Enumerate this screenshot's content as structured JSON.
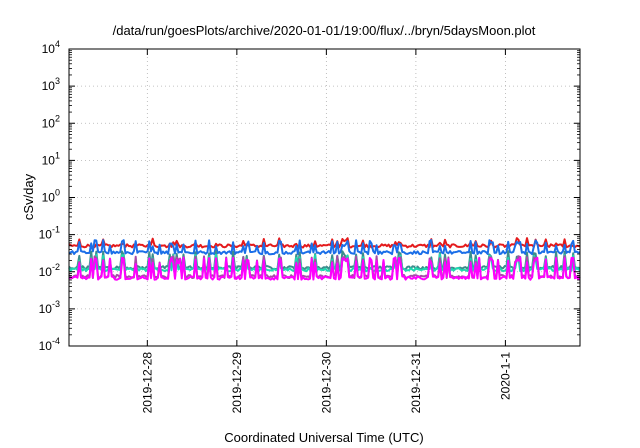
{
  "chart_data": {
    "type": "line",
    "title": "/data/run/goesPlots/archive/2020-01-01/19:00/flux/../bryn/5daysMoon.plot",
    "xlabel": "Coordinated Universal Time (UTC)",
    "ylabel": "cSv/day",
    "y_scale": "log",
    "ylim": [
      0.0001,
      10000
    ],
    "y_ticks": [
      {
        "value": 0.0001,
        "base": "10",
        "exp": "-4"
      },
      {
        "value": 0.001,
        "base": "10",
        "exp": "-3"
      },
      {
        "value": 0.01,
        "base": "10",
        "exp": "-2"
      },
      {
        "value": 0.1,
        "base": "10",
        "exp": "-1"
      },
      {
        "value": 1,
        "base": "10",
        "exp": "0"
      },
      {
        "value": 10,
        "base": "10",
        "exp": "1"
      },
      {
        "value": 100,
        "base": "10",
        "exp": "2"
      },
      {
        "value": 1000,
        "base": "10",
        "exp": "3"
      },
      {
        "value": 10000,
        "base": "10",
        "exp": "4"
      }
    ],
    "xlim": [
      "2019-12-27T03:00",
      "2020-01-01T20:00"
    ],
    "x_ticks": [
      {
        "value": "2019-12-28T00:00",
        "label": "2019-12-28"
      },
      {
        "value": "2019-12-29T00:00",
        "label": "2019-12-29"
      },
      {
        "value": "2019-12-30T00:00",
        "label": "2019-12-30"
      },
      {
        "value": "2019-12-31T00:00",
        "label": "2019-12-31"
      },
      {
        "value": "2020-01-01T00:00",
        "label": "2020-1-1"
      }
    ],
    "grid": true,
    "series": [
      {
        "color": "#e41a1c",
        "level": 0.05,
        "spike_level": 0.068,
        "spike_rate": 0.18
      },
      {
        "color": "#1a6ee8",
        "level": 0.033,
        "spike_level": 0.06,
        "spike_rate": 0.28
      },
      {
        "color": "#3c8c8c",
        "level": 0.013,
        "spike_level": 0.03,
        "spike_rate": 0.22
      },
      {
        "color": "#1fd8b0",
        "level": 0.0115,
        "spike_level": 0.025,
        "spike_rate": 0.22
      },
      {
        "color": "#a64ca6",
        "level": 0.0075,
        "spike_level": 0.022,
        "spike_rate": 0.3
      },
      {
        "color": "#ff00ff",
        "level": 0.0068,
        "spike_level": 0.02,
        "spike_rate": 0.3
      }
    ]
  }
}
